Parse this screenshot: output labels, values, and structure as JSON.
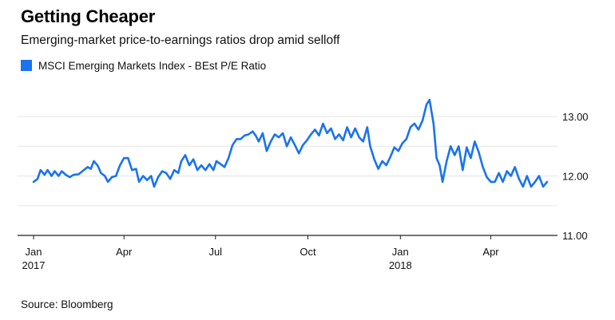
{
  "title": "Getting Cheaper",
  "subtitle": "Emerging-market price-to-earnings ratios drop amid selloff",
  "source": "Source: Bloomberg",
  "colors": {
    "series": "#1a73f0",
    "grid": "#e5e5e5",
    "axis": "#222222"
  },
  "chart_data": {
    "type": "line",
    "title": "Getting Cheaper",
    "subtitle": "Emerging-market price-to-earnings ratios drop amid selloff",
    "xlabel": "",
    "ylabel": "",
    "ylim": [
      11.0,
      13.0
    ],
    "grid": true,
    "legend": "top-left",
    "y_ticks": [
      "11.00",
      "12.00",
      "13.00"
    ],
    "x_ticks": [
      {
        "label": "Jan",
        "sub": "2017",
        "date": "2017-01-01"
      },
      {
        "label": "Apr",
        "sub": "",
        "date": "2017-04-01"
      },
      {
        "label": "Jul",
        "sub": "",
        "date": "2017-07-01"
      },
      {
        "label": "Oct",
        "sub": "",
        "date": "2017-10-01"
      },
      {
        "label": "Jan",
        "sub": "2018",
        "date": "2018-01-01"
      },
      {
        "label": "Apr",
        "sub": "",
        "date": "2018-04-01"
      }
    ],
    "series": [
      {
        "name": "MSCI Emerging Markets Index - BEst P/E Ratio",
        "color": "#1a73f0",
        "points": [
          [
            "2017-01-01",
            11.9
          ],
          [
            "2017-01-05",
            11.95
          ],
          [
            "2017-01-08",
            12.1
          ],
          [
            "2017-01-12",
            12.02
          ],
          [
            "2017-01-15",
            12.1
          ],
          [
            "2017-01-19",
            12.0
          ],
          [
            "2017-01-22",
            12.08
          ],
          [
            "2017-01-26",
            12.0
          ],
          [
            "2017-01-29",
            12.08
          ],
          [
            "2017-02-02",
            12.02
          ],
          [
            "2017-02-06",
            11.98
          ],
          [
            "2017-02-10",
            12.02
          ],
          [
            "2017-02-15",
            12.03
          ],
          [
            "2017-02-20",
            12.1
          ],
          [
            "2017-02-24",
            12.15
          ],
          [
            "2017-02-27",
            12.12
          ],
          [
            "2017-03-02",
            12.25
          ],
          [
            "2017-03-06",
            12.17
          ],
          [
            "2017-03-09",
            12.05
          ],
          [
            "2017-03-13",
            12.0
          ],
          [
            "2017-03-16",
            11.9
          ],
          [
            "2017-03-20",
            11.98
          ],
          [
            "2017-03-24",
            12.0
          ],
          [
            "2017-03-28",
            12.18
          ],
          [
            "2017-04-01",
            12.3
          ],
          [
            "2017-04-05",
            12.3
          ],
          [
            "2017-04-09",
            12.1
          ],
          [
            "2017-04-13",
            12.12
          ],
          [
            "2017-04-16",
            11.9
          ],
          [
            "2017-04-20",
            12.0
          ],
          [
            "2017-04-24",
            11.93
          ],
          [
            "2017-04-28",
            12.0
          ],
          [
            "2017-05-01",
            11.82
          ],
          [
            "2017-05-05",
            11.98
          ],
          [
            "2017-05-09",
            12.08
          ],
          [
            "2017-05-13",
            12.05
          ],
          [
            "2017-05-17",
            11.95
          ],
          [
            "2017-05-21",
            12.1
          ],
          [
            "2017-05-25",
            12.05
          ],
          [
            "2017-05-28",
            12.25
          ],
          [
            "2017-06-01",
            12.35
          ],
          [
            "2017-06-05",
            12.18
          ],
          [
            "2017-06-09",
            12.28
          ],
          [
            "2017-06-13",
            12.1
          ],
          [
            "2017-06-17",
            12.18
          ],
          [
            "2017-06-21",
            12.1
          ],
          [
            "2017-06-25",
            12.2
          ],
          [
            "2017-06-29",
            12.1
          ],
          [
            "2017-07-02",
            12.25
          ],
          [
            "2017-07-06",
            12.2
          ],
          [
            "2017-07-10",
            12.15
          ],
          [
            "2017-07-14",
            12.3
          ],
          [
            "2017-07-18",
            12.52
          ],
          [
            "2017-07-22",
            12.62
          ],
          [
            "2017-07-26",
            12.62
          ],
          [
            "2017-07-30",
            12.68
          ],
          [
            "2017-08-03",
            12.7
          ],
          [
            "2017-08-07",
            12.75
          ],
          [
            "2017-08-10",
            12.68
          ],
          [
            "2017-08-13",
            12.58
          ],
          [
            "2017-08-17",
            12.72
          ],
          [
            "2017-08-21",
            12.42
          ],
          [
            "2017-08-25",
            12.58
          ],
          [
            "2017-08-29",
            12.7
          ],
          [
            "2017-09-02",
            12.65
          ],
          [
            "2017-09-06",
            12.72
          ],
          [
            "2017-09-10",
            12.5
          ],
          [
            "2017-09-14",
            12.65
          ],
          [
            "2017-09-18",
            12.52
          ],
          [
            "2017-09-22",
            12.38
          ],
          [
            "2017-09-26",
            12.52
          ],
          [
            "2017-09-30",
            12.6
          ],
          [
            "2017-10-04",
            12.7
          ],
          [
            "2017-10-08",
            12.78
          ],
          [
            "2017-10-12",
            12.68
          ],
          [
            "2017-10-16",
            12.88
          ],
          [
            "2017-10-20",
            12.72
          ],
          [
            "2017-10-24",
            12.8
          ],
          [
            "2017-10-28",
            12.62
          ],
          [
            "2017-11-01",
            12.7
          ],
          [
            "2017-11-05",
            12.6
          ],
          [
            "2017-11-09",
            12.82
          ],
          [
            "2017-11-13",
            12.65
          ],
          [
            "2017-11-17",
            12.8
          ],
          [
            "2017-11-21",
            12.65
          ],
          [
            "2017-11-25",
            12.58
          ],
          [
            "2017-11-29",
            12.82
          ],
          [
            "2017-12-02",
            12.5
          ],
          [
            "2017-12-06",
            12.28
          ],
          [
            "2017-12-10",
            12.12
          ],
          [
            "2017-12-14",
            12.25
          ],
          [
            "2017-12-18",
            12.18
          ],
          [
            "2017-12-22",
            12.32
          ],
          [
            "2017-12-26",
            12.48
          ],
          [
            "2017-12-30",
            12.42
          ],
          [
            "2018-01-03",
            12.55
          ],
          [
            "2018-01-07",
            12.62
          ],
          [
            "2018-01-11",
            12.82
          ],
          [
            "2018-01-15",
            12.88
          ],
          [
            "2018-01-19",
            12.78
          ],
          [
            "2018-01-23",
            12.93
          ],
          [
            "2018-01-27",
            13.2
          ],
          [
            "2018-01-30",
            13.28
          ],
          [
            "2018-02-03",
            12.88
          ],
          [
            "2018-02-06",
            12.3
          ],
          [
            "2018-02-09",
            12.18
          ],
          [
            "2018-02-12",
            11.9
          ],
          [
            "2018-02-16",
            12.25
          ],
          [
            "2018-02-20",
            12.5
          ],
          [
            "2018-02-24",
            12.35
          ],
          [
            "2018-02-28",
            12.5
          ],
          [
            "2018-03-04",
            12.1
          ],
          [
            "2018-03-08",
            12.48
          ],
          [
            "2018-03-12",
            12.3
          ],
          [
            "2018-03-16",
            12.58
          ],
          [
            "2018-03-20",
            12.4
          ],
          [
            "2018-03-24",
            12.15
          ],
          [
            "2018-03-28",
            11.98
          ],
          [
            "2018-04-01",
            11.9
          ],
          [
            "2018-04-05",
            11.9
          ],
          [
            "2018-04-09",
            12.05
          ],
          [
            "2018-04-13",
            11.9
          ],
          [
            "2018-04-17",
            12.08
          ],
          [
            "2018-04-21",
            12.0
          ],
          [
            "2018-04-25",
            12.15
          ],
          [
            "2018-04-29",
            11.95
          ],
          [
            "2018-05-03",
            11.82
          ],
          [
            "2018-05-07",
            12.0
          ],
          [
            "2018-05-11",
            11.82
          ],
          [
            "2018-05-15",
            11.9
          ],
          [
            "2018-05-19",
            12.0
          ],
          [
            "2018-05-23",
            11.82
          ],
          [
            "2018-05-27",
            11.9
          ]
        ]
      }
    ]
  }
}
